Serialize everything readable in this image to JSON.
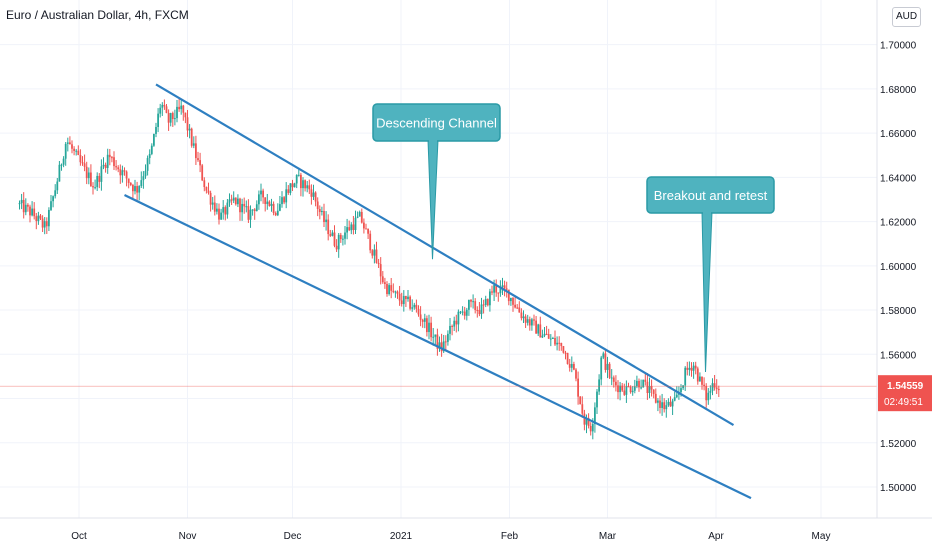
{
  "header": {
    "title": "Euro / Australian Dollar, 4h, FXCM",
    "currency": "AUD"
  },
  "colors": {
    "up": "#26a69a",
    "down": "#ef5350",
    "channel": "#2e7fc1",
    "callout_fill": "#4fb3bf",
    "callout_stroke": "#2a9aa6",
    "price_tag": "#ef5350",
    "grid": "#f0f3fa"
  },
  "chart_data": {
    "type": "candlestick",
    "title": "Euro / Australian Dollar, 4h, FXCM",
    "x_tick_labels": [
      "Oct",
      "Nov",
      "Dec",
      "2021",
      "Feb",
      "Mar",
      "Apr",
      "May"
    ],
    "y_tick_labels": [
      "1.50000",
      "1.52000",
      "1.54000",
      "1.56000",
      "1.58000",
      "1.60000",
      "1.62000",
      "1.64000",
      "1.66000",
      "1.68000",
      "1.70000"
    ],
    "ylim": [
      1.486,
      1.717
    ],
    "grid": true,
    "last_price": "1.54559",
    "countdown": "02:49:51",
    "price_path": [
      [
        "2020-09-14",
        1.628
      ],
      [
        "2020-09-18",
        1.624
      ],
      [
        "2020-09-22",
        1.617
      ],
      [
        "2020-09-25",
        1.636
      ],
      [
        "2020-09-28",
        1.657
      ],
      [
        "2020-10-02",
        1.646
      ],
      [
        "2020-10-06",
        1.636
      ],
      [
        "2020-10-10",
        1.65
      ],
      [
        "2020-10-14",
        1.642
      ],
      [
        "2020-10-18",
        1.634
      ],
      [
        "2020-10-22",
        1.65
      ],
      [
        "2020-10-25",
        1.674
      ],
      [
        "2020-10-27",
        1.665
      ],
      [
        "2020-10-31",
        1.671
      ],
      [
        "2020-11-03",
        1.655
      ],
      [
        "2020-11-07",
        1.634
      ],
      [
        "2020-11-11",
        1.622
      ],
      [
        "2020-11-15",
        1.63
      ],
      [
        "2020-11-19",
        1.623
      ],
      [
        "2020-11-23",
        1.632
      ],
      [
        "2020-11-27",
        1.625
      ],
      [
        "2020-11-30",
        1.634
      ],
      [
        "2020-12-03",
        1.639
      ],
      [
        "2020-12-07",
        1.634
      ],
      [
        "2020-12-10",
        1.622
      ],
      [
        "2020-12-14",
        1.61
      ],
      [
        "2020-12-17",
        1.616
      ],
      [
        "2020-12-21",
        1.622
      ],
      [
        "2020-12-24",
        1.609
      ],
      [
        "2020-12-28",
        1.591
      ],
      [
        "2021-01-01",
        1.585
      ],
      [
        "2021-01-05",
        1.582
      ],
      [
        "2021-01-09",
        1.573
      ],
      [
        "2021-01-13",
        1.562
      ],
      [
        "2021-01-17",
        1.575
      ],
      [
        "2021-01-21",
        1.582
      ],
      [
        "2021-01-25",
        1.58
      ],
      [
        "2021-01-28",
        1.59
      ],
      [
        "2021-02-01",
        1.588
      ],
      [
        "2021-02-05",
        1.578
      ],
      [
        "2021-02-09",
        1.572
      ],
      [
        "2021-02-13",
        1.567
      ],
      [
        "2021-02-17",
        1.563
      ],
      [
        "2021-02-20",
        1.552
      ],
      [
        "2021-02-23",
        1.53
      ],
      [
        "2021-02-25",
        1.527
      ],
      [
        "2021-02-27",
        1.548
      ],
      [
        "2021-02-28",
        1.56
      ],
      [
        "2021-03-03",
        1.547
      ],
      [
        "2021-03-07",
        1.544
      ],
      [
        "2021-03-11",
        1.548
      ],
      [
        "2021-03-15",
        1.54
      ],
      [
        "2021-03-18",
        1.536
      ],
      [
        "2021-03-21",
        1.538
      ],
      [
        "2021-03-24",
        1.552
      ],
      [
        "2021-03-26",
        1.556
      ],
      [
        "2021-03-28",
        1.548
      ],
      [
        "2021-03-30",
        1.54
      ],
      [
        "2021-04-01",
        1.548
      ],
      [
        "2021-04-02",
        1.5456
      ]
    ],
    "channel": {
      "upper": [
        [
          "2020-10-23",
          1.682
        ],
        [
          "2021-04-06",
          1.528
        ]
      ],
      "lower": [
        [
          "2020-10-14",
          1.632
        ],
        [
          "2021-04-11",
          1.495
        ]
      ]
    },
    "annotations": [
      {
        "text": "Descending Channel",
        "anchor": [
          "2021-01-10",
          1.603
        ]
      },
      {
        "text": "Breakout and retest",
        "anchor": [
          "2021-03-29",
          1.552
        ]
      }
    ]
  }
}
